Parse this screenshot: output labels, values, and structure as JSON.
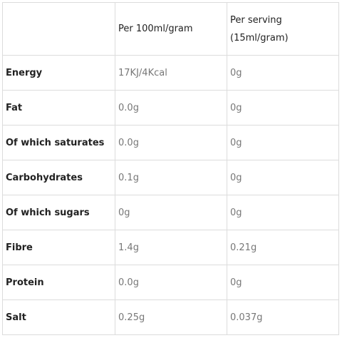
{
  "table": {
    "header": {
      "nutrient": "",
      "per_100": "Per 100ml/gram",
      "per_serving": "Per serving (15ml/gram)"
    },
    "rows": [
      {
        "nutrient": "Energy",
        "per_100": "17KJ/4Kcal",
        "per_serving": "0g"
      },
      {
        "nutrient": "Fat",
        "per_100": "0.0g",
        "per_serving": "0g"
      },
      {
        "nutrient": "Of which saturates",
        "per_100": "0.0g",
        "per_serving": "0g"
      },
      {
        "nutrient": "Carbohydrates",
        "per_100": "0.1g",
        "per_serving": "0g"
      },
      {
        "nutrient": "Of which sugars",
        "per_100": "0g",
        "per_serving": "0g"
      },
      {
        "nutrient": "Fibre",
        "per_100": "1.4g",
        "per_serving": "0.21g"
      },
      {
        "nutrient": "Protein",
        "per_100": "0.0g",
        "per_serving": "0g"
      },
      {
        "nutrient": "Salt",
        "per_100": "0.25g",
        "per_serving": "0.037g"
      }
    ]
  }
}
